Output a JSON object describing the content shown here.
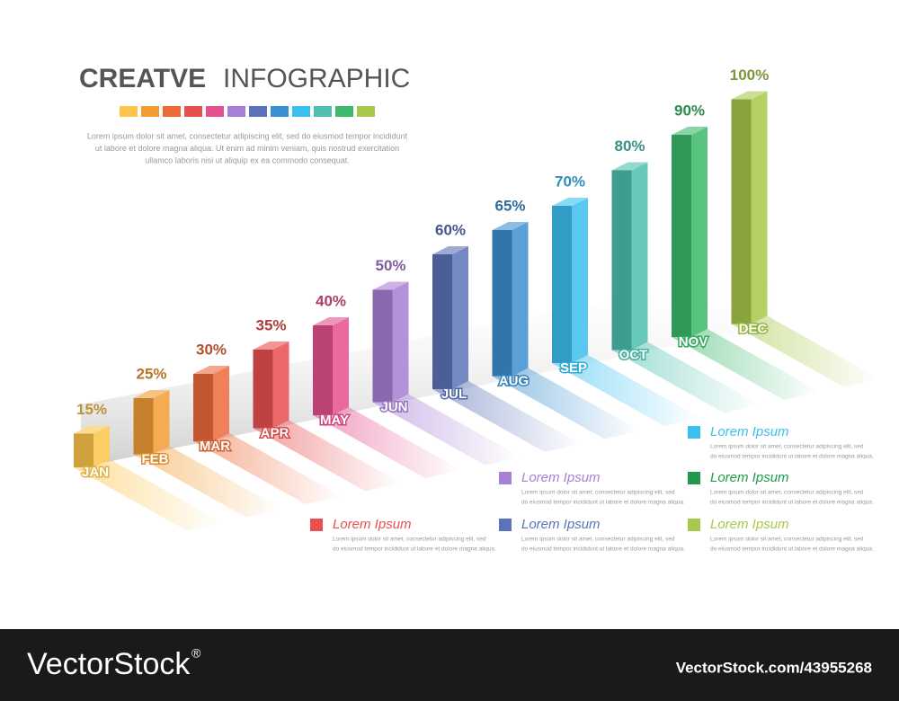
{
  "chart_data": {
    "type": "bar",
    "title": [
      "CREATVE",
      "INFOGRAPHIC"
    ],
    "description": [
      "Lorem ipsum dolor sit amet, consectetur adipiscing elit, sed do eiusmod tempor incididunt",
      "ut labore et dolore magna aliqua. Ut enim ad minim veniam, quis nostrud exercitation",
      "ullamco laboris nisi ut aliquip ex ea commodo consequat."
    ],
    "categories": [
      "JAN",
      "FEB",
      "MAR",
      "APR",
      "MAY",
      "JUN",
      "JUL",
      "AUG",
      "SEP",
      "OCT",
      "NOV",
      "DEC"
    ],
    "values": [
      15,
      25,
      30,
      35,
      40,
      50,
      60,
      65,
      70,
      80,
      90,
      100
    ],
    "value_labels": [
      "15%",
      "25%",
      "30%",
      "35%",
      "40%",
      "50%",
      "60%",
      "65%",
      "70%",
      "80%",
      "90%",
      "100%"
    ],
    "colors": [
      "#fcc44a",
      "#f39c34",
      "#ec6a3a",
      "#e8504f",
      "#e4508e",
      "#a77fd4",
      "#5b73b8",
      "#3d8fd0",
      "#3cc0f0",
      "#4dbfae",
      "#3cb96a",
      "#a8c84a"
    ],
    "legend": [
      {
        "label": "Lorem Ipsum",
        "color": "#e8504f",
        "text": [
          "Lorem ipsum dolor sit amet, consectetur adipiscing elit, sed",
          "do eiusmod tempor incididunt ut labore et dolore magna aliqua."
        ]
      },
      {
        "label": "Lorem Ipsum",
        "color": "#a77fd4",
        "text": [
          "Lorem ipsum dolor sit amet, consectetur adipiscing elit, sed",
          "do eiusmod tempor incididunt ut labore et dolore magna aliqua."
        ]
      },
      {
        "label": "Lorem Ipsum",
        "color": "#5b73b8",
        "text": [
          "Lorem ipsum dolor sit amet, consectetur adipiscing elit, sed",
          "do eiusmod tempor incididunt ut labore et dolore magna aliqua."
        ]
      },
      {
        "label": "Lorem Ipsum",
        "color": "#3cc0f0",
        "text": [
          "Lorem ipsum dolor sit amet, consectetur adipiscing elit, sed",
          "do eiusmod tempor incididunt ut labore et dolore magna aliqua."
        ]
      },
      {
        "label": "Lorem Ipsum",
        "color": "#1f9a4a",
        "text": [
          "Lorem ipsum dolor sit amet, consectetur adipiscing elit, sed",
          "do eiusmod tempor incididunt ut labore et dolore magna aliqua."
        ]
      },
      {
        "label": "Lorem Ipsum",
        "color": "#a8c84a",
        "text": [
          "Lorem ipsum dolor sit amet, consectetur adipiscing elit, sed",
          "do eiusmod tempor incididunt ut labore et dolore magna aliqua."
        ]
      }
    ]
  },
  "footer": {
    "brand": "VectorStock",
    "mark": "®",
    "id": "VectorStock.com/43955268"
  }
}
